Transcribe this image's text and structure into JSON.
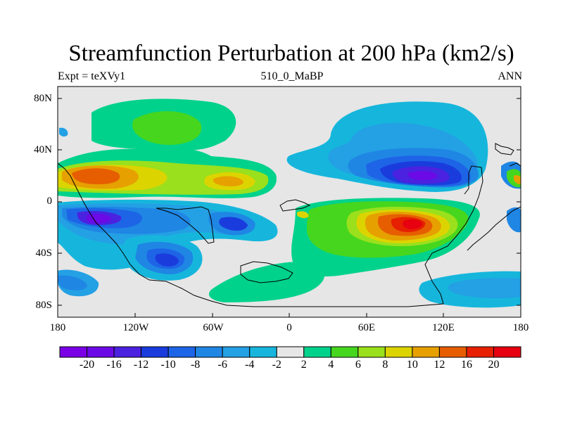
{
  "title": "Streamfunction Perturbation at 200 hPa (km2/s)",
  "subtitle_left": "Expt = teXVy1",
  "subtitle_center": "510_0_MaBP",
  "subtitle_right": "ANN",
  "y_ticks": [
    "80N",
    "40N",
    "0",
    "40S",
    "80S"
  ],
  "x_ticks": [
    "180",
    "120W",
    "60W",
    "0",
    "60E",
    "120E",
    "180"
  ],
  "colorbar": {
    "labels": [
      "-20",
      "-16",
      "-12",
      "-10",
      "-8",
      "-6",
      "-4",
      "-2",
      "2",
      "4",
      "6",
      "8",
      "10",
      "12",
      "16",
      "20"
    ],
    "colors": [
      "#7a00e6",
      "#6b0ae6",
      "#4a22e0",
      "#1a3cdd",
      "#1e64e6",
      "#1f86e4",
      "#24a0e4",
      "#16b6dc",
      "#e6e6e6",
      "#00d28c",
      "#46d61e",
      "#9ae01c",
      "#dcd400",
      "#e6a000",
      "#e65e00",
      "#e62000",
      "#e60010"
    ]
  },
  "colors": {
    "background": "#e6e6e6",
    "coastline": "#000000"
  }
}
